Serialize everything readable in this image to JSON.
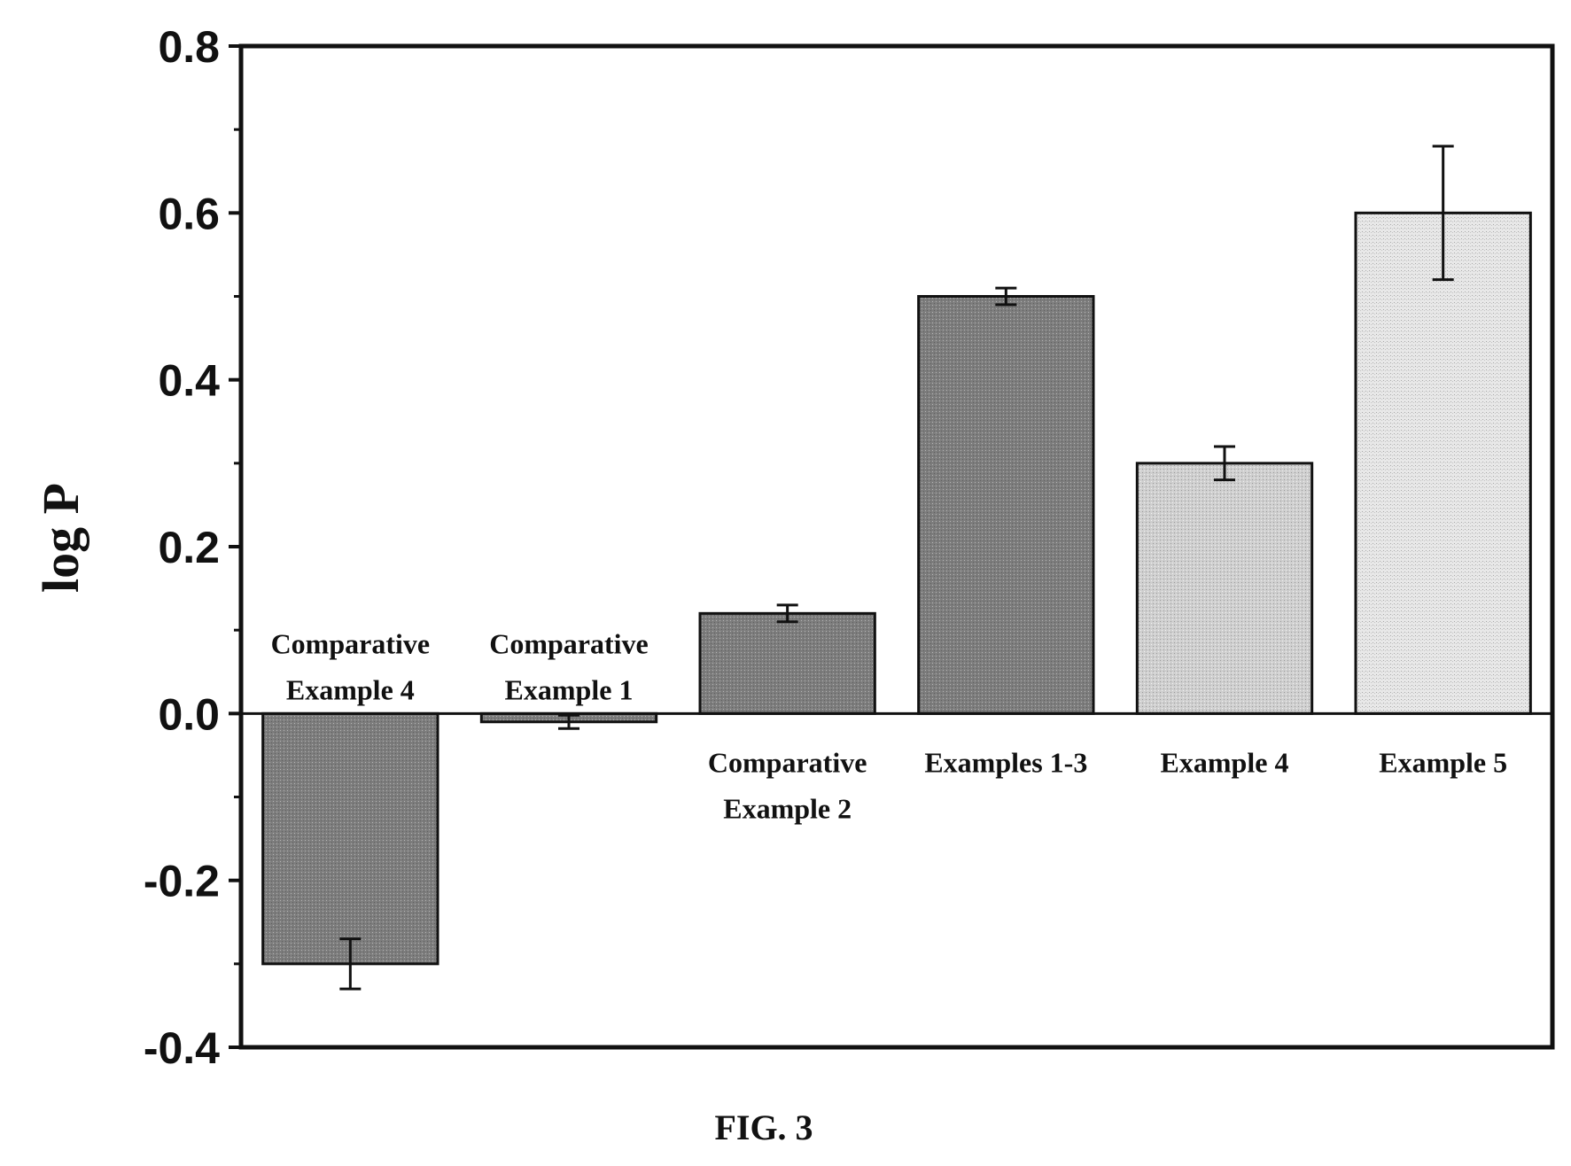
{
  "chart_data": {
    "type": "bar",
    "title": "",
    "xlabel": "",
    "ylabel": "log P",
    "ylim": [
      -0.4,
      0.8
    ],
    "yticks": [
      "-0.4",
      "-0.2",
      "0.0",
      "0.2",
      "0.4",
      "0.6",
      "0.8"
    ],
    "grid": false,
    "categories": [
      {
        "line1": "Comparative",
        "line2": "Example 4",
        "label_position": "above"
      },
      {
        "line1": "Comparative",
        "line2": "Example 1",
        "label_position": "above"
      },
      {
        "line1": "Comparative",
        "line2": "Example 2",
        "label_position": "below"
      },
      {
        "line1": "Examples 1-3",
        "line2": "",
        "label_position": "below"
      },
      {
        "line1": "Example 4",
        "line2": "",
        "label_position": "below"
      },
      {
        "line1": "Example 5",
        "line2": "",
        "label_position": "below"
      }
    ],
    "values": [
      -0.3,
      -0.01,
      0.12,
      0.5,
      0.3,
      0.6
    ],
    "errors": [
      0.03,
      0.008,
      0.01,
      0.01,
      0.02,
      0.08
    ],
    "colors": [
      "#8f8f8f",
      "#8f8f8f",
      "#969696",
      "#8f8f8f",
      "#c9c9c9",
      "#e3e3e3"
    ]
  },
  "caption": "FIG. 3"
}
